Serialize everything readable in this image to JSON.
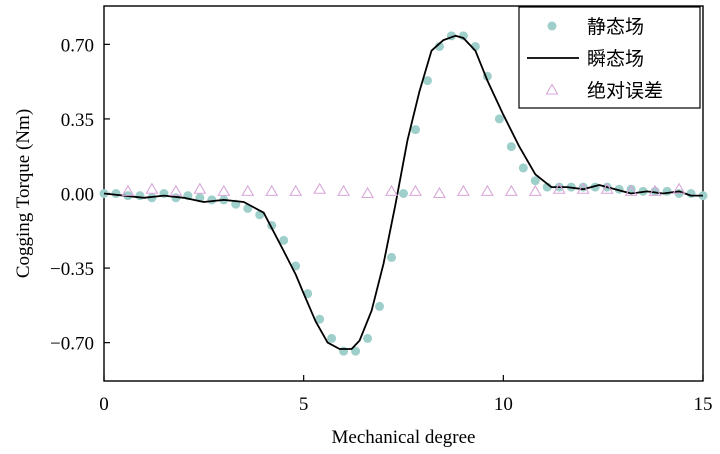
{
  "chart_data": {
    "type": "line",
    "xlabel": "Mechanical degree",
    "ylabel": "Cogging Torque (Nm)",
    "xlim": [
      0,
      15
    ],
    "ylim": [
      -0.88,
      0.88
    ],
    "xticks": [
      0,
      5,
      10,
      15
    ],
    "xtick_labels": [
      "0",
      "5",
      "10",
      "15"
    ],
    "yticks": [
      0.7,
      0.35,
      0.0,
      -0.35,
      -0.7
    ],
    "ytick_labels": [
      "0.70",
      "0.35",
      "0.00",
      "−0.35",
      "−0.70"
    ],
    "grid": false,
    "legend": {
      "position": "top-right",
      "entries": [
        {
          "label": "静态场",
          "marker": "circle",
          "color": "#9ecfcb"
        },
        {
          "label": "瞬态场",
          "marker": "line",
          "color": "#000000"
        },
        {
          "label": "绝对误差",
          "marker": "triangle",
          "color": "#d9a6d9"
        }
      ]
    },
    "series": [
      {
        "name": "静态场",
        "style": "scatter",
        "color": "#9ecfcb",
        "x": [
          0.0,
          0.3,
          0.6,
          0.9,
          1.2,
          1.5,
          1.8,
          2.1,
          2.4,
          2.7,
          3.0,
          3.3,
          3.6,
          3.9,
          4.2,
          4.5,
          4.8,
          5.1,
          5.4,
          5.7,
          6.0,
          6.3,
          6.6,
          6.9,
          7.2,
          7.5,
          7.8,
          8.1,
          8.4,
          8.7,
          9.0,
          9.3,
          9.6,
          9.9,
          10.2,
          10.5,
          10.8,
          11.1,
          11.4,
          11.7,
          12.0,
          12.3,
          12.6,
          12.9,
          13.2,
          13.5,
          13.8,
          14.1,
          14.4,
          14.7,
          15.0
        ],
        "y": [
          0.0,
          0.0,
          -0.01,
          -0.01,
          -0.02,
          0.0,
          -0.02,
          -0.01,
          -0.02,
          -0.03,
          -0.03,
          -0.05,
          -0.07,
          -0.1,
          -0.15,
          -0.22,
          -0.34,
          -0.47,
          -0.59,
          -0.68,
          -0.74,
          -0.74,
          -0.68,
          -0.53,
          -0.3,
          0.0,
          0.3,
          0.53,
          0.69,
          0.74,
          0.74,
          0.69,
          0.55,
          0.35,
          0.22,
          0.12,
          0.06,
          0.03,
          0.03,
          0.03,
          0.03,
          0.03,
          0.03,
          0.02,
          0.02,
          0.01,
          0.01,
          0.01,
          0.0,
          0.0,
          -0.01
        ]
      },
      {
        "name": "瞬态场",
        "style": "line",
        "color": "#000000",
        "x": [
          0.0,
          0.5,
          1.0,
          1.5,
          2.0,
          2.5,
          3.0,
          3.5,
          4.0,
          4.5,
          4.8,
          5.0,
          5.3,
          5.6,
          5.9,
          6.2,
          6.4,
          6.7,
          7.0,
          7.3,
          7.6,
          7.9,
          8.2,
          8.5,
          8.8,
          9.0,
          9.3,
          9.6,
          10.0,
          10.4,
          10.8,
          11.2,
          11.6,
          12.0,
          12.4,
          12.8,
          13.2,
          13.6,
          14.0,
          14.4,
          14.7,
          15.0
        ],
        "y": [
          0.0,
          -0.01,
          -0.02,
          -0.01,
          -0.02,
          -0.04,
          -0.03,
          -0.04,
          -0.09,
          -0.27,
          -0.38,
          -0.47,
          -0.6,
          -0.7,
          -0.73,
          -0.73,
          -0.69,
          -0.55,
          -0.33,
          -0.05,
          0.25,
          0.48,
          0.67,
          0.72,
          0.74,
          0.73,
          0.67,
          0.53,
          0.37,
          0.22,
          0.09,
          0.03,
          0.03,
          0.02,
          0.04,
          0.02,
          0.0,
          0.01,
          0.0,
          0.01,
          -0.01,
          -0.01
        ]
      },
      {
        "name": "绝对误差",
        "style": "scatter-triangle",
        "color": "#d9a6d9",
        "x": [
          0.6,
          1.2,
          1.8,
          2.4,
          3.0,
          3.6,
          4.2,
          4.8,
          5.4,
          6.0,
          6.6,
          7.2,
          7.8,
          8.4,
          9.0,
          9.6,
          10.2,
          10.8,
          11.4,
          12.0,
          12.6,
          13.2,
          13.8,
          14.4
        ],
        "y": [
          0.01,
          0.02,
          0.01,
          0.02,
          0.01,
          0.01,
          0.01,
          0.01,
          0.02,
          0.01,
          0.0,
          0.01,
          0.01,
          0.0,
          0.01,
          0.01,
          0.01,
          0.01,
          0.02,
          0.02,
          0.02,
          0.01,
          0.01,
          0.02
        ]
      }
    ]
  }
}
